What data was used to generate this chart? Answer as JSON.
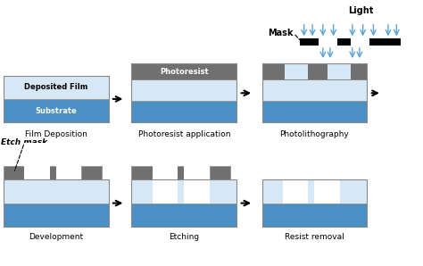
{
  "fig_width": 4.74,
  "fig_height": 2.98,
  "dpi": 100,
  "bg_color": "#ffffff",
  "colors": {
    "light_blue": "#aecde8",
    "medium_blue": "#4a90c4",
    "gray": "#707070",
    "white": "#ffffff",
    "light_blue2": "#d6e8f5",
    "arrow_blue": "#5ba3d9",
    "black": "#000000"
  },
  "top_row_labels": [
    "Film Deposition",
    "Photoresist application",
    "Photolithography"
  ],
  "bottom_row_labels": [
    "Development",
    "Etching",
    "Resist removal"
  ]
}
